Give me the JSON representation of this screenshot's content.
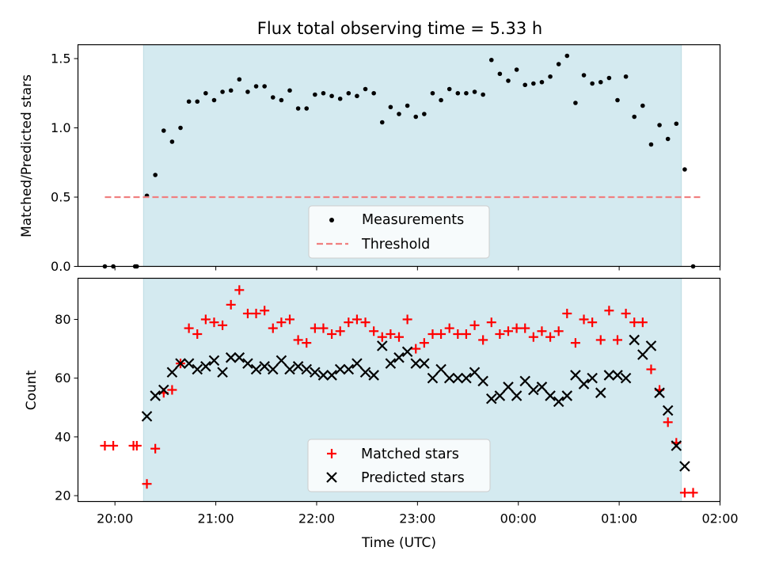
{
  "chart_data": {
    "title": "Flux total observing time = 5.33 h",
    "x_axis": {
      "label": "Time (UTC)",
      "ticks": [
        "20:00",
        "21:00",
        "22:00",
        "23:00",
        "00:00",
        "01:00",
        "02:00"
      ],
      "range": [
        "19:38",
        "02:00"
      ]
    },
    "shaded_region": {
      "start": "20:17",
      "end": "01:37",
      "color": "#d4eaf0"
    },
    "panels": [
      {
        "type": "scatter",
        "ylabel": "Matched/Predicted stars",
        "ylim": [
          0,
          1.6
        ],
        "yticks": [
          "0.0",
          "0.5",
          "1.0",
          "1.5"
        ],
        "grid": false,
        "legend_position": "lower-center",
        "series": [
          {
            "name": "Measurements",
            "marker": "dot",
            "color": "#000000",
            "points": [
              [
                "19:54",
                0.0
              ],
              [
                "19:59",
                0.0
              ],
              [
                "20:12",
                0.0
              ],
              [
                "20:13",
                0.0
              ],
              [
                "20:19",
                0.51
              ],
              [
                "20:24",
                0.66
              ],
              [
                "20:29",
                0.98
              ],
              [
                "20:34",
                0.9
              ],
              [
                "20:39",
                1.0
              ],
              [
                "20:44",
                1.19
              ],
              [
                "20:49",
                1.19
              ],
              [
                "20:54",
                1.25
              ],
              [
                "20:59",
                1.2
              ],
              [
                "21:04",
                1.26
              ],
              [
                "21:09",
                1.27
              ],
              [
                "21:14",
                1.35
              ],
              [
                "21:19",
                1.26
              ],
              [
                "21:24",
                1.3
              ],
              [
                "21:29",
                1.3
              ],
              [
                "21:34",
                1.22
              ],
              [
                "21:39",
                1.2
              ],
              [
                "21:44",
                1.27
              ],
              [
                "21:49",
                1.14
              ],
              [
                "21:54",
                1.14
              ],
              [
                "21:59",
                1.24
              ],
              [
                "22:04",
                1.25
              ],
              [
                "22:09",
                1.23
              ],
              [
                "22:14",
                1.21
              ],
              [
                "22:19",
                1.25
              ],
              [
                "22:24",
                1.23
              ],
              [
                "22:29",
                1.28
              ],
              [
                "22:34",
                1.25
              ],
              [
                "22:39",
                1.04
              ],
              [
                "22:44",
                1.15
              ],
              [
                "22:49",
                1.1
              ],
              [
                "22:54",
                1.16
              ],
              [
                "22:59",
                1.08
              ],
              [
                "23:04",
                1.1
              ],
              [
                "23:09",
                1.25
              ],
              [
                "23:14",
                1.2
              ],
              [
                "23:19",
                1.28
              ],
              [
                "23:24",
                1.25
              ],
              [
                "23:29",
                1.25
              ],
              [
                "23:34",
                1.26
              ],
              [
                "23:39",
                1.24
              ],
              [
                "23:44",
                1.49
              ],
              [
                "23:49",
                1.39
              ],
              [
                "23:54",
                1.34
              ],
              [
                "23:59",
                1.42
              ],
              [
                "00:04",
                1.31
              ],
              [
                "00:09",
                1.32
              ],
              [
                "00:14",
                1.33
              ],
              [
                "00:19",
                1.37
              ],
              [
                "00:24",
                1.46
              ],
              [
                "00:29",
                1.52
              ],
              [
                "00:34",
                1.18
              ],
              [
                "00:39",
                1.38
              ],
              [
                "00:44",
                1.32
              ],
              [
                "00:49",
                1.33
              ],
              [
                "00:54",
                1.36
              ],
              [
                "00:59",
                1.2
              ],
              [
                "01:04",
                1.37
              ],
              [
                "01:09",
                1.08
              ],
              [
                "01:14",
                1.16
              ],
              [
                "01:19",
                0.88
              ],
              [
                "01:24",
                1.02
              ],
              [
                "01:29",
                0.92
              ],
              [
                "01:34",
                1.03
              ],
              [
                "01:39",
                0.7
              ],
              [
                "01:44",
                0.0
              ]
            ]
          },
          {
            "name": "Threshold",
            "marker": "dashed-line",
            "color": "#f08080",
            "x_range": [
              "19:54",
              "01:50"
            ],
            "y": 0.5
          }
        ]
      },
      {
        "type": "scatter",
        "ylabel": "Count",
        "ylim": [
          18,
          94
        ],
        "yticks": [
          "20",
          "40",
          "60",
          "80"
        ],
        "grid": false,
        "legend_position": "lower-center",
        "series": [
          {
            "name": "Matched stars",
            "marker": "plus",
            "color": "#ff0000",
            "points": [
              [
                "19:54",
                37
              ],
              [
                "19:59",
                37
              ],
              [
                "20:11",
                37
              ],
              [
                "20:13",
                37
              ],
              [
                "20:19",
                24
              ],
              [
                "20:24",
                36
              ],
              [
                "20:29",
                55
              ],
              [
                "20:34",
                56
              ],
              [
                "20:39",
                65
              ],
              [
                "20:44",
                77
              ],
              [
                "20:49",
                75
              ],
              [
                "20:54",
                80
              ],
              [
                "20:59",
                79
              ],
              [
                "21:04",
                78
              ],
              [
                "21:09",
                85
              ],
              [
                "21:14",
                90
              ],
              [
                "21:19",
                82
              ],
              [
                "21:24",
                82
              ],
              [
                "21:29",
                83
              ],
              [
                "21:34",
                77
              ],
              [
                "21:39",
                79
              ],
              [
                "21:44",
                80
              ],
              [
                "21:49",
                73
              ],
              [
                "21:54",
                72
              ],
              [
                "21:59",
                77
              ],
              [
                "22:04",
                77
              ],
              [
                "22:09",
                75
              ],
              [
                "22:14",
                76
              ],
              [
                "22:19",
                79
              ],
              [
                "22:24",
                80
              ],
              [
                "22:29",
                79
              ],
              [
                "22:34",
                76
              ],
              [
                "22:39",
                74
              ],
              [
                "22:44",
                75
              ],
              [
                "22:49",
                74
              ],
              [
                "22:54",
                80
              ],
              [
                "22:59",
                70
              ],
              [
                "23:04",
                72
              ],
              [
                "23:09",
                75
              ],
              [
                "23:14",
                75
              ],
              [
                "23:19",
                77
              ],
              [
                "23:24",
                75
              ],
              [
                "23:29",
                75
              ],
              [
                "23:34",
                78
              ],
              [
                "23:39",
                73
              ],
              [
                "23:44",
                79
              ],
              [
                "23:49",
                75
              ],
              [
                "23:54",
                76
              ],
              [
                "23:59",
                77
              ],
              [
                "00:04",
                77
              ],
              [
                "00:09",
                74
              ],
              [
                "00:14",
                76
              ],
              [
                "00:19",
                74
              ],
              [
                "00:24",
                76
              ],
              [
                "00:29",
                82
              ],
              [
                "00:34",
                72
              ],
              [
                "00:39",
                80
              ],
              [
                "00:44",
                79
              ],
              [
                "00:49",
                73
              ],
              [
                "00:54",
                83
              ],
              [
                "00:59",
                73
              ],
              [
                "01:04",
                82
              ],
              [
                "01:09",
                79
              ],
              [
                "01:14",
                79
              ],
              [
                "01:19",
                63
              ],
              [
                "01:24",
                56
              ],
              [
                "01:29",
                45
              ],
              [
                "01:34",
                38
              ],
              [
                "01:39",
                21
              ],
              [
                "01:44",
                21
              ]
            ]
          },
          {
            "name": "Predicted stars",
            "marker": "cross",
            "color": "#000000",
            "points": [
              [
                "20:19",
                47
              ],
              [
                "20:24",
                54
              ],
              [
                "20:29",
                56
              ],
              [
                "20:34",
                62
              ],
              [
                "20:39",
                65
              ],
              [
                "20:44",
                65
              ],
              [
                "20:49",
                63
              ],
              [
                "20:54",
                64
              ],
              [
                "20:59",
                66
              ],
              [
                "21:04",
                62
              ],
              [
                "21:09",
                67
              ],
              [
                "21:14",
                67
              ],
              [
                "21:19",
                65
              ],
              [
                "21:24",
                63
              ],
              [
                "21:29",
                64
              ],
              [
                "21:34",
                63
              ],
              [
                "21:39",
                66
              ],
              [
                "21:44",
                63
              ],
              [
                "21:49",
                64
              ],
              [
                "21:54",
                63
              ],
              [
                "21:59",
                62
              ],
              [
                "22:04",
                61
              ],
              [
                "22:09",
                61
              ],
              [
                "22:14",
                63
              ],
              [
                "22:19",
                63
              ],
              [
                "22:24",
                65
              ],
              [
                "22:29",
                62
              ],
              [
                "22:34",
                61
              ],
              [
                "22:39",
                71
              ],
              [
                "22:44",
                65
              ],
              [
                "22:49",
                67
              ],
              [
                "22:54",
                69
              ],
              [
                "22:59",
                65
              ],
              [
                "23:04",
                65
              ],
              [
                "23:09",
                60
              ],
              [
                "23:14",
                63
              ],
              [
                "23:19",
                60
              ],
              [
                "23:24",
                60
              ],
              [
                "23:29",
                60
              ],
              [
                "23:34",
                62
              ],
              [
                "23:39",
                59
              ],
              [
                "23:44",
                53
              ],
              [
                "23:49",
                54
              ],
              [
                "23:54",
                57
              ],
              [
                "23:59",
                54
              ],
              [
                "00:04",
                59
              ],
              [
                "00:09",
                56
              ],
              [
                "00:14",
                57
              ],
              [
                "00:19",
                54
              ],
              [
                "00:24",
                52
              ],
              [
                "00:29",
                54
              ],
              [
                "00:34",
                61
              ],
              [
                "00:39",
                58
              ],
              [
                "00:44",
                60
              ],
              [
                "00:49",
                55
              ],
              [
                "00:54",
                61
              ],
              [
                "00:59",
                61
              ],
              [
                "01:04",
                60
              ],
              [
                "01:09",
                73
              ],
              [
                "01:14",
                68
              ],
              [
                "01:19",
                71
              ],
              [
                "01:24",
                55
              ],
              [
                "01:29",
                49
              ],
              [
                "01:34",
                37
              ],
              [
                "01:39",
                30
              ]
            ]
          }
        ]
      }
    ]
  }
}
